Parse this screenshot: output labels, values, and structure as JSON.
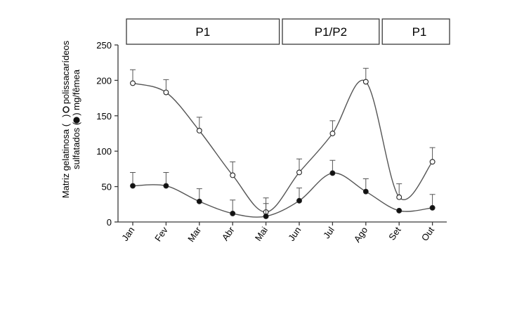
{
  "chart_data": {
    "type": "line",
    "categories": [
      "Jan",
      "Fev",
      "Mar",
      "Abr",
      "Mai",
      "Jun",
      "Jul",
      "Ago",
      "Set",
      "Out"
    ],
    "ylabel_line1": "Matriz gelatinosa (",
    "ylabel_line1_mid": ") e polissacarídeos",
    "ylabel_line2": "sulfatados (",
    "ylabel_line2_end": ") mg/fêmea",
    "ylim": [
      0,
      250
    ],
    "yticks": [
      0,
      50,
      100,
      150,
      200,
      250
    ],
    "grid": false,
    "bands": [
      {
        "label": "P1",
        "from": "Jan",
        "to": "Mai"
      },
      {
        "label": "P1/P2",
        "from": "Jun",
        "to": "Ago"
      },
      {
        "label": "P1",
        "from": "Set",
        "to": "Out"
      }
    ],
    "series": [
      {
        "marker": "open",
        "values": [
          196,
          183,
          129,
          66,
          14,
          70,
          125,
          198,
          35,
          85
        ],
        "errors": [
          19,
          18,
          19,
          19,
          20,
          19,
          18,
          19,
          19,
          20
        ]
      },
      {
        "marker": "filled",
        "values": [
          51,
          51,
          29,
          12,
          8,
          30,
          69,
          43,
          16,
          20
        ],
        "errors": [
          19,
          19,
          18,
          19,
          18,
          18,
          18,
          18,
          0,
          19
        ]
      }
    ]
  }
}
